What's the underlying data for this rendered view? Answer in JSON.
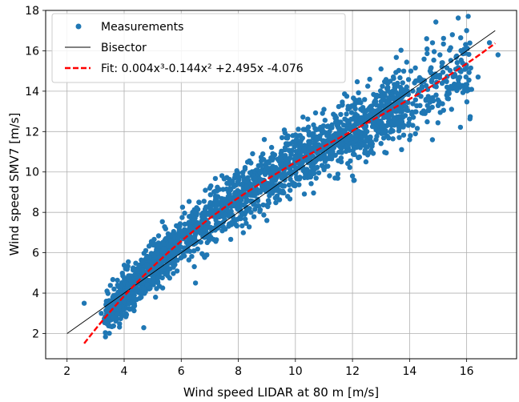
{
  "chart_data": {
    "type": "scatter",
    "title": "",
    "xlabel": "Wind speed LIDAR at 80 m [m/s]",
    "ylabel": "Wind speed SMV7 [m/s]",
    "xlim": [
      1.25,
      17.75
    ],
    "ylim": [
      0.75,
      18
    ],
    "xticks": [
      2,
      4,
      6,
      8,
      10,
      12,
      14,
      16
    ],
    "yticks": [
      2,
      4,
      6,
      8,
      10,
      12,
      14,
      16,
      18
    ],
    "grid": true,
    "legend_position": "top-left",
    "colors": {
      "measurements": "#1f77b4",
      "bisector": "#000000",
      "fit": "#ff0000"
    },
    "series": [
      {
        "name": "Measurements",
        "kind": "scatter",
        "x_range": [
          2.6,
          17.1
        ],
        "relation": "y ≈ 0.004x³ - 0.144x² + 2.495x - 4.076, spread ±0.8",
        "sample_points": [
          [
            2.6,
            3.5
          ],
          [
            3.2,
            3.0
          ],
          [
            3.4,
            4.1
          ],
          [
            4.0,
            3.6
          ],
          [
            4.8,
            5.4
          ],
          [
            5.1,
            3.8
          ],
          [
            6.5,
            4.5
          ],
          [
            7.0,
            9.2
          ],
          [
            8.5,
            10.9
          ],
          [
            9.0,
            7.6
          ],
          [
            10.0,
            11.3
          ],
          [
            11.0,
            13.1
          ],
          [
            12.0,
            9.8
          ],
          [
            13.0,
            15.1
          ],
          [
            14.0,
            11.6
          ],
          [
            14.6,
            16.6
          ],
          [
            15.3,
            13.8
          ],
          [
            15.5,
            16.8
          ],
          [
            16.0,
            17.0
          ],
          [
            16.4,
            14.7
          ],
          [
            16.8,
            16.4
          ],
          [
            17.1,
            15.8
          ]
        ]
      },
      {
        "name": "Bisector",
        "kind": "line",
        "x": [
          2,
          17
        ],
        "y": [
          2,
          17
        ]
      },
      {
        "name": "Fit: 0.004x³-0.144x² +2.495x -4.076",
        "kind": "dashed-line",
        "coefficients": {
          "a3": 0.004,
          "a2": -0.144,
          "a1": 2.495,
          "a0": -4.076
        },
        "x_range": [
          2.6,
          17
        ]
      }
    ]
  }
}
